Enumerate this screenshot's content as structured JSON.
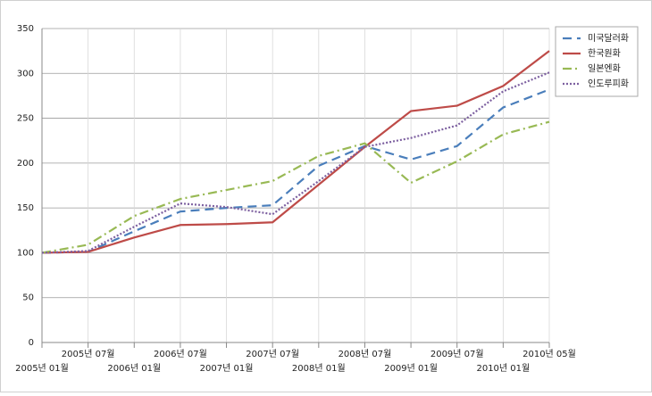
{
  "chart_data": {
    "type": "line",
    "categories": [
      "2005년 01월",
      "2005년 07월",
      "2006년 01월",
      "2006년 07월",
      "2007년 01월",
      "2007년 07월",
      "2008년 01월",
      "2008년 07월",
      "2009년 01월",
      "2009년 07월",
      "2010년 01월",
      "2010년 05월"
    ],
    "series": [
      {
        "name": "미국달러화",
        "color": "#4a7ebb",
        "values": [
          100,
          101,
          124,
          146,
          150,
          153,
          197,
          219,
          204,
          219,
          262,
          282
        ]
      },
      {
        "name": "한국원화",
        "color": "#be4b48",
        "values": [
          100,
          101,
          117,
          131,
          132,
          134,
          176,
          218,
          258,
          264,
          286,
          325
        ]
      },
      {
        "name": "일본엔화",
        "color": "#98b954",
        "values": [
          100,
          109,
          141,
          160,
          170,
          180,
          208,
          222,
          178,
          202,
          232,
          246
        ]
      },
      {
        "name": "인도루피화",
        "color": "#7d60a0",
        "values": [
          100,
          102,
          129,
          155,
          151,
          143,
          180,
          218,
          228,
          242,
          280,
          301
        ]
      }
    ],
    "ylim": [
      0,
      350
    ],
    "yticks": [
      0,
      50,
      100,
      150,
      200,
      250,
      300,
      350
    ],
    "grid": true,
    "legend": "right"
  }
}
